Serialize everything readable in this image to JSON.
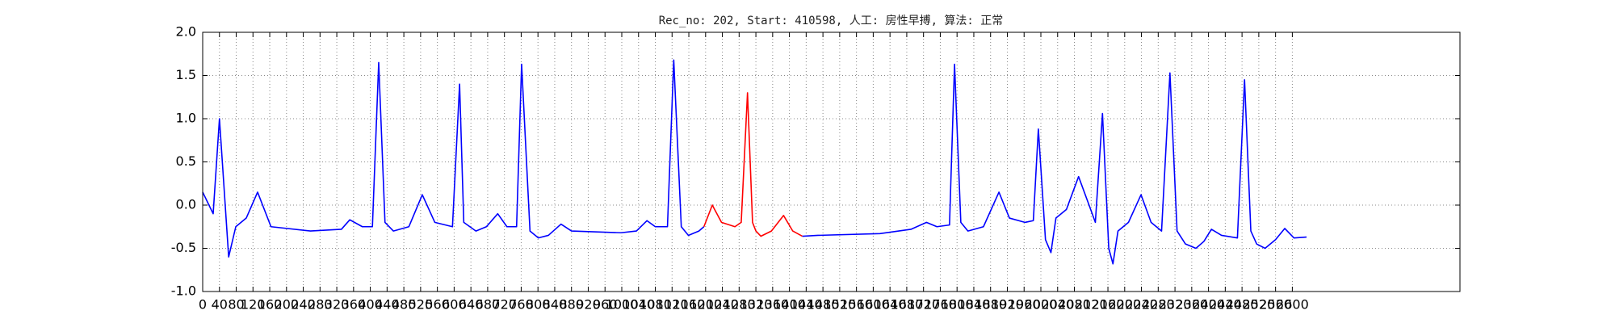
{
  "chart_data": {
    "type": "line",
    "title": "Rec_no: 202, Start: 410598, 人工: 房性早搏, 算法: 正常",
    "xlim": [
      0,
      3000
    ],
    "xticks": [
      0,
      40,
      80,
      120,
      160,
      200,
      240,
      280,
      320,
      360,
      400,
      440,
      480,
      520,
      560,
      600,
      640,
      680,
      720,
      760,
      800,
      840,
      880,
      920,
      960,
      1000,
      1040,
      1080,
      1120,
      1160,
      1200,
      1240,
      1280,
      1320,
      1360,
      1400,
      1440,
      1480,
      1520,
      1560,
      1600,
      1640,
      1680,
      1720,
      1760,
      1800,
      1840,
      1880,
      1920,
      1960,
      2000,
      2040,
      2080,
      2120,
      2160,
      2200,
      2240,
      2280,
      2320,
      2360,
      2400,
      2440,
      2480,
      2520,
      2560,
      2600
    ],
    "ylim": [
      -1,
      2
    ],
    "yticks": [
      {
        "value": -1,
        "label": "-1.0"
      },
      {
        "value": -0.5,
        "label": "-0.5"
      },
      {
        "value": 0,
        "label": "0.0"
      },
      {
        "value": 0.5,
        "label": "0.5"
      },
      {
        "value": 1,
        "label": "1.0"
      },
      {
        "value": 1.5,
        "label": "1.5"
      },
      {
        "value": 2,
        "label": "2.0"
      }
    ],
    "grid": true,
    "series": [
      {
        "color": "#0000ff",
        "x": [
          0,
          25,
          40,
          62,
          79,
          104,
          131,
          163,
          257,
          331,
          351,
          381,
          405,
          420,
          435,
          455,
          492,
          524,
          554,
          596,
          613,
          623,
          652,
          677,
          704,
          726,
          749,
          761,
          781,
          801,
          825,
          855,
          880,
          998,
          1035,
          1060,
          1080,
          1109,
          1124,
          1142,
          1159,
          1184,
          1196
        ],
        "values": [
          0.15,
          -0.1,
          1.0,
          -0.6,
          -0.25,
          -0.15,
          0.15,
          -0.25,
          -0.3,
          -0.28,
          -0.17,
          -0.25,
          -0.25,
          1.65,
          -0.2,
          -0.3,
          -0.25,
          0.12,
          -0.2,
          -0.25,
          1.4,
          -0.2,
          -0.3,
          -0.25,
          -0.1,
          -0.25,
          -0.25,
          1.63,
          -0.3,
          -0.38,
          -0.35,
          -0.22,
          -0.3,
          -0.32,
          -0.3,
          -0.18,
          -0.25,
          -0.25,
          1.68,
          -0.25,
          -0.35,
          -0.3,
          -0.25
        ]
      },
      {
        "color": "#ff0000",
        "x": [
          1196,
          1216,
          1238,
          1270,
          1285,
          1300,
          1312,
          1320,
          1332,
          1357,
          1386,
          1408,
          1431
        ],
        "values": [
          -0.25,
          0.0,
          -0.2,
          -0.25,
          -0.2,
          1.3,
          -0.2,
          -0.3,
          -0.36,
          -0.3,
          -0.12,
          -0.3,
          -0.36
        ]
      },
      {
        "color": "#0000ff",
        "x": [
          1431,
          1468,
          1616,
          1690,
          1727,
          1752,
          1782,
          1794,
          1809,
          1826,
          1863,
          1900,
          1925,
          1962,
          1982,
          1994,
          2011,
          2024,
          2036,
          2061,
          2090,
          2115,
          2130,
          2147,
          2162,
          2172,
          2184,
          2209,
          2239,
          2263,
          2288,
          2308,
          2325,
          2345,
          2370,
          2389,
          2407,
          2431,
          2469,
          2486,
          2501,
          2515,
          2535,
          2560,
          2582,
          2604,
          2634
        ],
        "values": [
          -0.36,
          -0.35,
          -0.33,
          -0.28,
          -0.2,
          -0.25,
          -0.23,
          1.63,
          -0.2,
          -0.3,
          -0.25,
          0.15,
          -0.15,
          -0.2,
          -0.18,
          0.88,
          -0.4,
          -0.55,
          -0.15,
          -0.05,
          0.33,
          0.0,
          -0.2,
          1.06,
          -0.5,
          -0.68,
          -0.3,
          -0.2,
          0.12,
          -0.2,
          -0.3,
          1.53,
          -0.3,
          -0.45,
          -0.5,
          -0.42,
          -0.28,
          -0.35,
          -0.38,
          1.45,
          -0.3,
          -0.45,
          -0.5,
          -0.4,
          -0.27,
          -0.38,
          -0.37
        ]
      }
    ]
  }
}
